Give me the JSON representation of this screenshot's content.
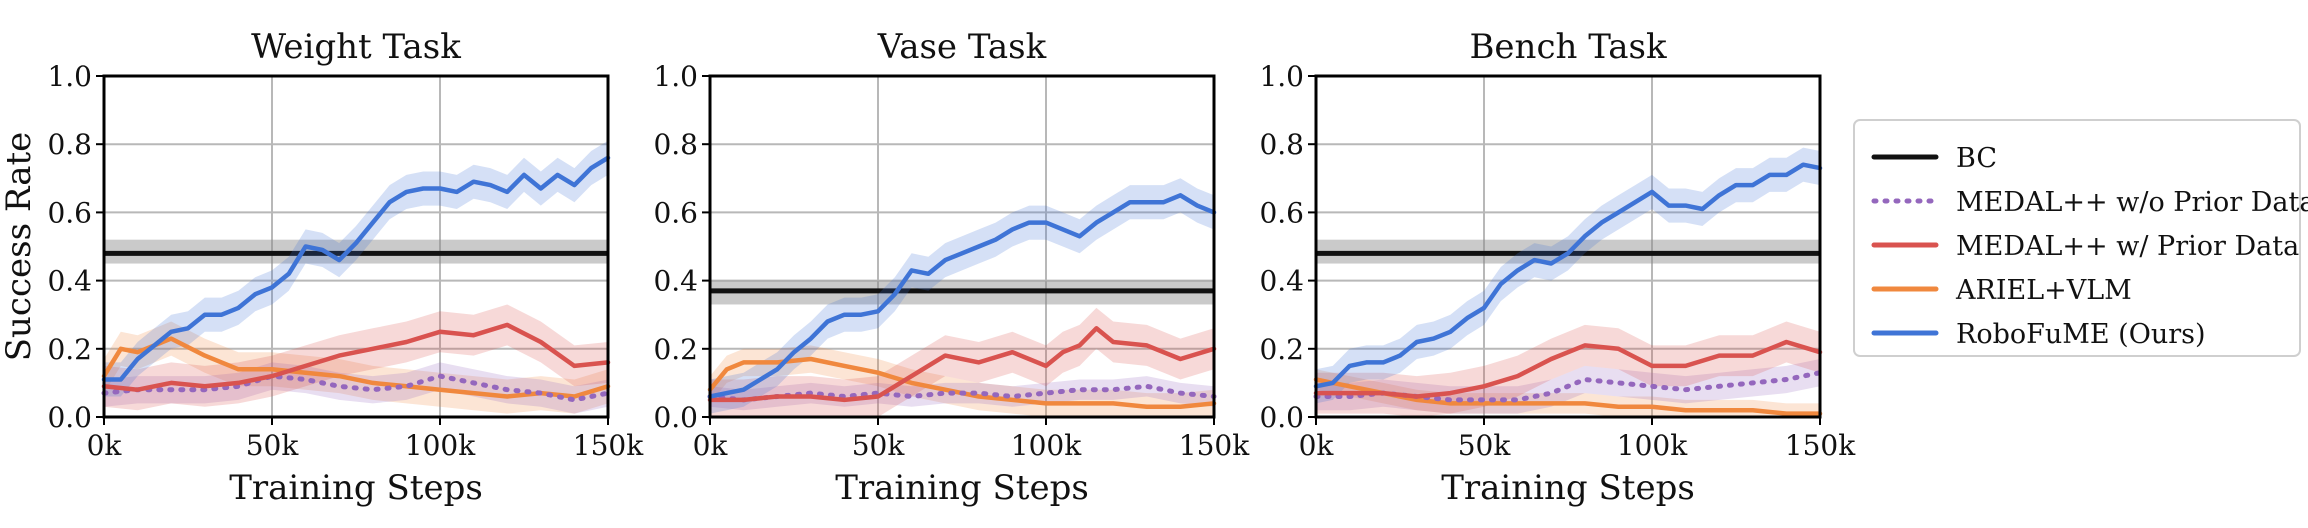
{
  "legend": {
    "items": [
      {
        "label": "BC",
        "color": "#111111",
        "style": "solid"
      },
      {
        "label": "MEDAL++ w/o Prior Data",
        "color": "#9467bd",
        "style": "dotted"
      },
      {
        "label": "MEDAL++ w/ Prior Data",
        "color": "#d9534f",
        "style": "solid"
      },
      {
        "label": "ARIEL+VLM",
        "color": "#f0883e",
        "style": "solid"
      },
      {
        "label": "RoboFuME (Ours)",
        "color": "#3f74d6",
        "style": "solid"
      }
    ]
  },
  "chart_data": [
    {
      "type": "line",
      "title": "Weight Task",
      "xlabel": "Training Steps",
      "ylabel": "Success Rate",
      "xlim": [
        0,
        150000
      ],
      "ylim": [
        0,
        1.0
      ],
      "xticks": [
        0,
        50000,
        100000,
        150000
      ],
      "xtick_labels": [
        "0k",
        "50k",
        "100k",
        "150k"
      ],
      "yticks": [
        0.0,
        0.2,
        0.4,
        0.6,
        0.8,
        1.0
      ],
      "ytick_labels": [
        "0.0",
        "0.2",
        "0.4",
        "0.6",
        "0.8",
        "1.0"
      ],
      "grid": true,
      "bc": {
        "value": 0.48,
        "band": [
          0.45,
          0.52
        ]
      },
      "series": [
        {
          "name": "RoboFuME (Ours)",
          "color": "#3f74d6",
          "x": [
            0,
            5000,
            10000,
            15000,
            20000,
            25000,
            30000,
            35000,
            40000,
            45000,
            50000,
            55000,
            60000,
            65000,
            70000,
            75000,
            80000,
            85000,
            90000,
            95000,
            100000,
            105000,
            110000,
            115000,
            120000,
            125000,
            130000,
            135000,
            140000,
            145000,
            150000
          ],
          "y": [
            0.11,
            0.11,
            0.17,
            0.21,
            0.25,
            0.26,
            0.3,
            0.3,
            0.32,
            0.36,
            0.38,
            0.42,
            0.5,
            0.49,
            0.46,
            0.51,
            0.57,
            0.63,
            0.66,
            0.67,
            0.67,
            0.66,
            0.69,
            0.68,
            0.66,
            0.71,
            0.67,
            0.71,
            0.68,
            0.73,
            0.76
          ],
          "spread": 0.05
        },
        {
          "name": "MEDAL++ w/ Prior Data",
          "color": "#d9534f",
          "x": [
            0,
            10000,
            20000,
            30000,
            40000,
            50000,
            60000,
            70000,
            80000,
            90000,
            100000,
            110000,
            120000,
            130000,
            140000,
            150000
          ],
          "y": [
            0.09,
            0.08,
            0.1,
            0.09,
            0.1,
            0.12,
            0.15,
            0.18,
            0.2,
            0.22,
            0.25,
            0.24,
            0.27,
            0.22,
            0.15,
            0.16
          ],
          "spread": 0.06
        },
        {
          "name": "MEDAL++ w/o Prior Data",
          "color": "#9467bd",
          "x": [
            0,
            10000,
            20000,
            30000,
            40000,
            50000,
            60000,
            70000,
            80000,
            90000,
            100000,
            110000,
            120000,
            130000,
            140000,
            150000
          ],
          "y": [
            0.07,
            0.08,
            0.08,
            0.08,
            0.09,
            0.12,
            0.11,
            0.09,
            0.08,
            0.09,
            0.12,
            0.1,
            0.08,
            0.07,
            0.05,
            0.07
          ],
          "spread": 0.04
        },
        {
          "name": "ARIEL+VLM",
          "color": "#f0883e",
          "x": [
            0,
            5000,
            10000,
            20000,
            30000,
            40000,
            50000,
            60000,
            70000,
            80000,
            90000,
            100000,
            110000,
            120000,
            130000,
            140000,
            150000
          ],
          "y": [
            0.12,
            0.2,
            0.19,
            0.23,
            0.18,
            0.14,
            0.14,
            0.13,
            0.12,
            0.1,
            0.09,
            0.08,
            0.07,
            0.06,
            0.07,
            0.06,
            0.09
          ],
          "spread": 0.05
        }
      ]
    },
    {
      "type": "line",
      "title": "Vase Task",
      "xlabel": "Training Steps",
      "ylabel": "",
      "xlim": [
        0,
        150000
      ],
      "ylim": [
        0,
        1.0
      ],
      "xticks": [
        0,
        50000,
        100000,
        150000
      ],
      "xtick_labels": [
        "0k",
        "50k",
        "100k",
        "150k"
      ],
      "yticks": [
        0.0,
        0.2,
        0.4,
        0.6,
        0.8,
        1.0
      ],
      "ytick_labels": [
        "0.0",
        "0.2",
        "0.4",
        "0.6",
        "0.8",
        "1.0"
      ],
      "grid": true,
      "bc": {
        "value": 0.37,
        "band": [
          0.33,
          0.4
        ]
      },
      "series": [
        {
          "name": "RoboFuME (Ours)",
          "color": "#3f74d6",
          "x": [
            0,
            5000,
            10000,
            15000,
            20000,
            25000,
            30000,
            35000,
            40000,
            45000,
            50000,
            55000,
            60000,
            65000,
            70000,
            75000,
            80000,
            85000,
            90000,
            95000,
            100000,
            105000,
            110000,
            115000,
            120000,
            125000,
            130000,
            135000,
            140000,
            145000,
            150000
          ],
          "y": [
            0.06,
            0.07,
            0.08,
            0.11,
            0.14,
            0.19,
            0.23,
            0.28,
            0.3,
            0.3,
            0.31,
            0.36,
            0.43,
            0.42,
            0.46,
            0.48,
            0.5,
            0.52,
            0.55,
            0.57,
            0.57,
            0.55,
            0.53,
            0.57,
            0.6,
            0.63,
            0.63,
            0.63,
            0.65,
            0.62,
            0.6
          ],
          "spread": 0.05
        },
        {
          "name": "MEDAL++ w/ Prior Data",
          "color": "#d9534f",
          "x": [
            0,
            10000,
            20000,
            30000,
            40000,
            50000,
            60000,
            70000,
            80000,
            90000,
            100000,
            105000,
            110000,
            115000,
            120000,
            130000,
            140000,
            150000
          ],
          "y": [
            0.05,
            0.05,
            0.06,
            0.06,
            0.05,
            0.06,
            0.12,
            0.18,
            0.16,
            0.19,
            0.15,
            0.19,
            0.21,
            0.26,
            0.22,
            0.21,
            0.17,
            0.2
          ],
          "spread": 0.06
        },
        {
          "name": "MEDAL++ w/o Prior Data",
          "color": "#9467bd",
          "x": [
            0,
            10000,
            20000,
            30000,
            40000,
            50000,
            60000,
            70000,
            80000,
            90000,
            100000,
            110000,
            120000,
            130000,
            140000,
            150000
          ],
          "y": [
            0.06,
            0.05,
            0.06,
            0.07,
            0.06,
            0.07,
            0.06,
            0.07,
            0.07,
            0.06,
            0.07,
            0.08,
            0.08,
            0.09,
            0.07,
            0.06
          ],
          "spread": 0.03
        },
        {
          "name": "ARIEL+VLM",
          "color": "#f0883e",
          "x": [
            0,
            5000,
            10000,
            20000,
            30000,
            40000,
            50000,
            60000,
            70000,
            80000,
            90000,
            100000,
            110000,
            120000,
            130000,
            140000,
            150000
          ],
          "y": [
            0.08,
            0.14,
            0.16,
            0.16,
            0.17,
            0.15,
            0.13,
            0.1,
            0.08,
            0.06,
            0.05,
            0.04,
            0.04,
            0.04,
            0.03,
            0.03,
            0.04
          ],
          "spread": 0.04
        }
      ]
    },
    {
      "type": "line",
      "title": "Bench Task",
      "xlabel": "Training Steps",
      "ylabel": "",
      "xlim": [
        0,
        150000
      ],
      "ylim": [
        0,
        1.0
      ],
      "xticks": [
        0,
        50000,
        100000,
        150000
      ],
      "xtick_labels": [
        "0k",
        "50k",
        "100k",
        "150k"
      ],
      "yticks": [
        0.0,
        0.2,
        0.4,
        0.6,
        0.8,
        1.0
      ],
      "ytick_labels": [
        "0.0",
        "0.2",
        "0.4",
        "0.6",
        "0.8",
        "1.0"
      ],
      "grid": true,
      "bc": {
        "value": 0.48,
        "band": [
          0.45,
          0.52
        ]
      },
      "series": [
        {
          "name": "RoboFuME (Ours)",
          "color": "#3f74d6",
          "x": [
            0,
            5000,
            10000,
            15000,
            20000,
            25000,
            30000,
            35000,
            40000,
            45000,
            50000,
            55000,
            60000,
            65000,
            70000,
            75000,
            80000,
            85000,
            90000,
            95000,
            100000,
            105000,
            110000,
            115000,
            120000,
            125000,
            130000,
            135000,
            140000,
            145000,
            150000
          ],
          "y": [
            0.09,
            0.1,
            0.15,
            0.16,
            0.16,
            0.18,
            0.22,
            0.23,
            0.25,
            0.29,
            0.32,
            0.39,
            0.43,
            0.46,
            0.45,
            0.48,
            0.53,
            0.57,
            0.6,
            0.63,
            0.66,
            0.62,
            0.62,
            0.61,
            0.65,
            0.68,
            0.68,
            0.71,
            0.71,
            0.74,
            0.73
          ],
          "spread": 0.05
        },
        {
          "name": "MEDAL++ w/ Prior Data",
          "color": "#d9534f",
          "x": [
            0,
            10000,
            20000,
            30000,
            40000,
            50000,
            60000,
            70000,
            80000,
            90000,
            100000,
            110000,
            120000,
            130000,
            140000,
            150000
          ],
          "y": [
            0.07,
            0.07,
            0.07,
            0.06,
            0.07,
            0.09,
            0.12,
            0.17,
            0.21,
            0.2,
            0.15,
            0.15,
            0.18,
            0.18,
            0.22,
            0.19
          ],
          "spread": 0.06
        },
        {
          "name": "MEDAL++ w/o Prior Data",
          "color": "#9467bd",
          "x": [
            0,
            10000,
            20000,
            30000,
            40000,
            50000,
            60000,
            70000,
            80000,
            90000,
            100000,
            110000,
            120000,
            130000,
            140000,
            150000
          ],
          "y": [
            0.06,
            0.06,
            0.07,
            0.06,
            0.05,
            0.05,
            0.05,
            0.07,
            0.11,
            0.1,
            0.09,
            0.08,
            0.09,
            0.1,
            0.11,
            0.13
          ],
          "spread": 0.04
        },
        {
          "name": "ARIEL+VLM",
          "color": "#f0883e",
          "x": [
            0,
            5000,
            10000,
            20000,
            30000,
            40000,
            50000,
            60000,
            70000,
            80000,
            90000,
            100000,
            110000,
            120000,
            130000,
            140000,
            150000
          ],
          "y": [
            0.11,
            0.1,
            0.09,
            0.07,
            0.05,
            0.04,
            0.04,
            0.04,
            0.04,
            0.04,
            0.03,
            0.03,
            0.02,
            0.02,
            0.02,
            0.01,
            0.01
          ],
          "spread": 0.03
        }
      ]
    }
  ]
}
